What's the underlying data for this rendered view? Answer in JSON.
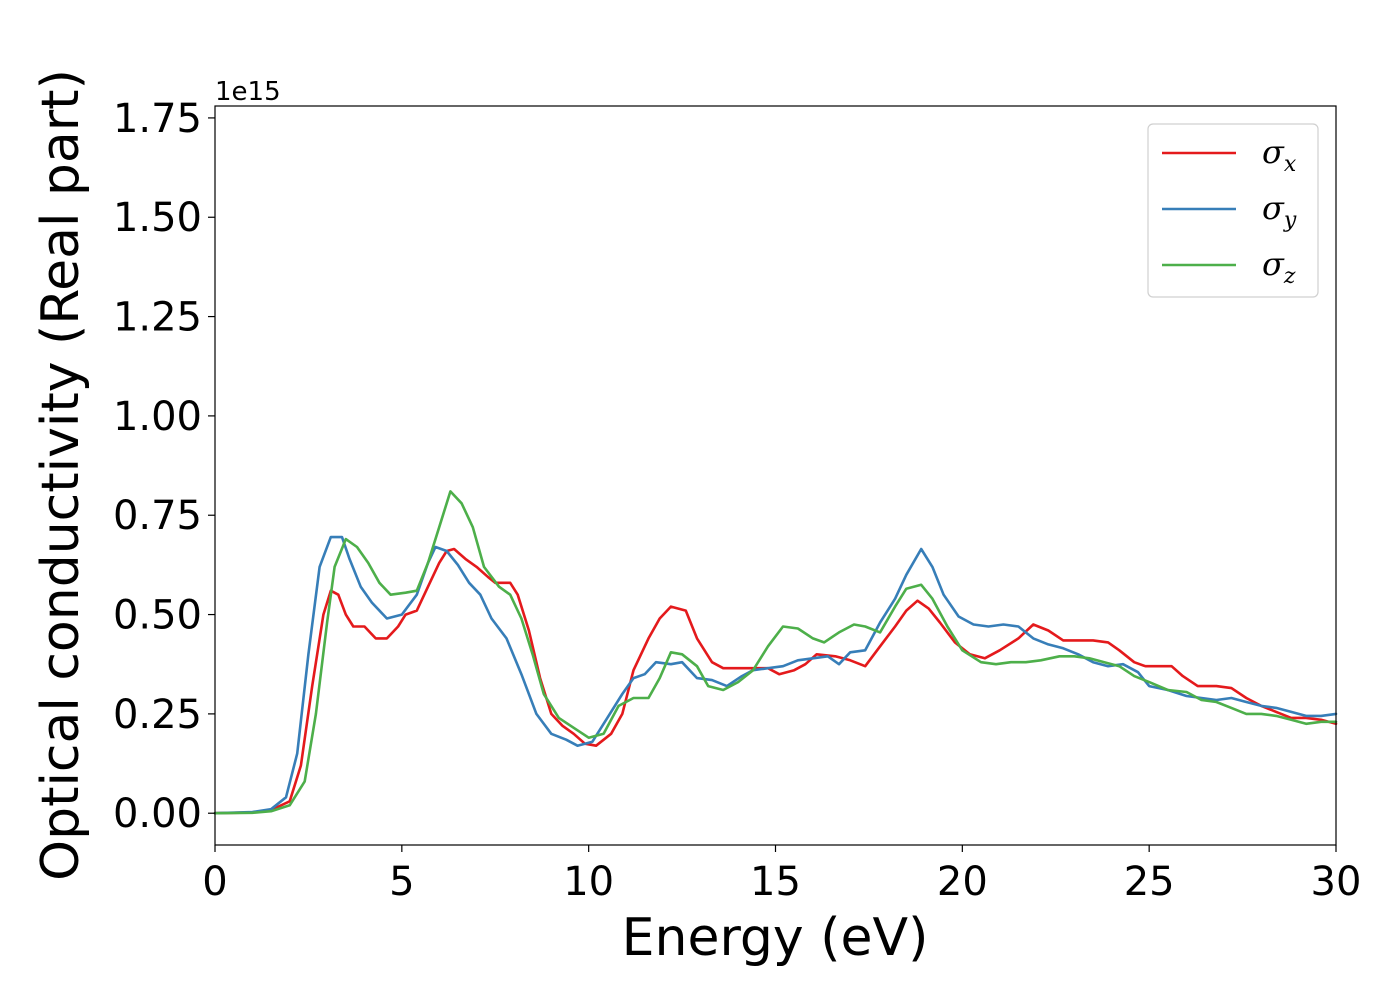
{
  "chart_data": {
    "type": "line",
    "title": "",
    "xlabel": "Energy (eV)",
    "ylabel": "Optical conductivity (Real part)",
    "y_offset_label": "1e15",
    "xlim": [
      0,
      30
    ],
    "ylim": [
      -0.08,
      1.78
    ],
    "x_ticks": [
      0,
      5,
      10,
      15,
      20,
      25,
      30
    ],
    "x_tick_labels": [
      "0",
      "5",
      "10",
      "15",
      "20",
      "25",
      "30"
    ],
    "y_ticks": [
      0,
      0.25,
      0.5,
      0.75,
      1.0,
      1.25,
      1.5,
      1.75
    ],
    "y_tick_labels": [
      "0.00",
      "0.25",
      "0.50",
      "0.75",
      "1.00",
      "1.25",
      "1.50",
      "1.75"
    ],
    "grid": false,
    "legend_position": "top-right",
    "series": [
      {
        "name": "σ",
        "sub": "x",
        "color": "#e41a1c",
        "points": [
          [
            0,
            0
          ],
          [
            1,
            0.002
          ],
          [
            1.5,
            0.008
          ],
          [
            2,
            0.03
          ],
          [
            2.3,
            0.12
          ],
          [
            2.6,
            0.32
          ],
          [
            2.9,
            0.5
          ],
          [
            3.1,
            0.56
          ],
          [
            3.3,
            0.55
          ],
          [
            3.5,
            0.5
          ],
          [
            3.7,
            0.47
          ],
          [
            4,
            0.47
          ],
          [
            4.3,
            0.44
          ],
          [
            4.6,
            0.44
          ],
          [
            4.9,
            0.47
          ],
          [
            5.1,
            0.5
          ],
          [
            5.4,
            0.51
          ],
          [
            5.7,
            0.57
          ],
          [
            6,
            0.63
          ],
          [
            6.2,
            0.66
          ],
          [
            6.4,
            0.665
          ],
          [
            6.7,
            0.64
          ],
          [
            7,
            0.62
          ],
          [
            7.3,
            0.595
          ],
          [
            7.5,
            0.58
          ],
          [
            7.9,
            0.58
          ],
          [
            8.1,
            0.55
          ],
          [
            8.4,
            0.46
          ],
          [
            8.7,
            0.34
          ],
          [
            9,
            0.25
          ],
          [
            9.3,
            0.22
          ],
          [
            9.6,
            0.2
          ],
          [
            9.9,
            0.175
          ],
          [
            10.2,
            0.17
          ],
          [
            10.6,
            0.2
          ],
          [
            10.9,
            0.25
          ],
          [
            11.2,
            0.36
          ],
          [
            11.6,
            0.44
          ],
          [
            11.9,
            0.49
          ],
          [
            12.2,
            0.52
          ],
          [
            12.6,
            0.51
          ],
          [
            12.9,
            0.44
          ],
          [
            13.3,
            0.38
          ],
          [
            13.6,
            0.365
          ],
          [
            14,
            0.365
          ],
          [
            14.4,
            0.365
          ],
          [
            14.8,
            0.365
          ],
          [
            15.1,
            0.35
          ],
          [
            15.5,
            0.36
          ],
          [
            15.8,
            0.375
          ],
          [
            16.1,
            0.4
          ],
          [
            16.6,
            0.395
          ],
          [
            17,
            0.385
          ],
          [
            17.4,
            0.37
          ],
          [
            17.8,
            0.42
          ],
          [
            18.2,
            0.47
          ],
          [
            18.5,
            0.51
          ],
          [
            18.8,
            0.535
          ],
          [
            19.1,
            0.515
          ],
          [
            19.4,
            0.48
          ],
          [
            19.8,
            0.43
          ],
          [
            20.2,
            0.4
          ],
          [
            20.6,
            0.39
          ],
          [
            21,
            0.41
          ],
          [
            21.5,
            0.44
          ],
          [
            21.9,
            0.475
          ],
          [
            22.3,
            0.46
          ],
          [
            22.7,
            0.435
          ],
          [
            23.1,
            0.435
          ],
          [
            23.5,
            0.435
          ],
          [
            23.9,
            0.43
          ],
          [
            24.2,
            0.41
          ],
          [
            24.6,
            0.38
          ],
          [
            24.9,
            0.37
          ],
          [
            25.3,
            0.37
          ],
          [
            25.6,
            0.37
          ],
          [
            25.9,
            0.345
          ],
          [
            26.3,
            0.32
          ],
          [
            26.8,
            0.32
          ],
          [
            27.2,
            0.315
          ],
          [
            27.6,
            0.29
          ],
          [
            28,
            0.27
          ],
          [
            28.4,
            0.255
          ],
          [
            28.8,
            0.24
          ],
          [
            29.2,
            0.24
          ],
          [
            29.6,
            0.235
          ],
          [
            30,
            0.225
          ]
        ]
      },
      {
        "name": "σ",
        "sub": "y",
        "color": "#377eb8",
        "points": [
          [
            0,
            0
          ],
          [
            1,
            0.003
          ],
          [
            1.5,
            0.01
          ],
          [
            1.9,
            0.04
          ],
          [
            2.2,
            0.15
          ],
          [
            2.5,
            0.4
          ],
          [
            2.8,
            0.62
          ],
          [
            3.1,
            0.695
          ],
          [
            3.4,
            0.695
          ],
          [
            3.6,
            0.64
          ],
          [
            3.9,
            0.57
          ],
          [
            4.2,
            0.53
          ],
          [
            4.6,
            0.49
          ],
          [
            5,
            0.5
          ],
          [
            5.4,
            0.55
          ],
          [
            5.7,
            0.63
          ],
          [
            5.9,
            0.67
          ],
          [
            6.2,
            0.66
          ],
          [
            6.5,
            0.625
          ],
          [
            6.8,
            0.58
          ],
          [
            7.1,
            0.55
          ],
          [
            7.4,
            0.49
          ],
          [
            7.8,
            0.44
          ],
          [
            8.2,
            0.35
          ],
          [
            8.6,
            0.25
          ],
          [
            9,
            0.2
          ],
          [
            9.4,
            0.185
          ],
          [
            9.7,
            0.17
          ],
          [
            10.1,
            0.18
          ],
          [
            10.5,
            0.24
          ],
          [
            10.9,
            0.3
          ],
          [
            11.2,
            0.34
          ],
          [
            11.5,
            0.35
          ],
          [
            11.8,
            0.38
          ],
          [
            12.2,
            0.375
          ],
          [
            12.5,
            0.38
          ],
          [
            12.9,
            0.34
          ],
          [
            13.3,
            0.335
          ],
          [
            13.7,
            0.32
          ],
          [
            14.1,
            0.345
          ],
          [
            14.4,
            0.36
          ],
          [
            14.8,
            0.365
          ],
          [
            15.2,
            0.37
          ],
          [
            15.6,
            0.385
          ],
          [
            16,
            0.39
          ],
          [
            16.4,
            0.395
          ],
          [
            16.7,
            0.375
          ],
          [
            17,
            0.405
          ],
          [
            17.4,
            0.41
          ],
          [
            17.8,
            0.48
          ],
          [
            18.2,
            0.54
          ],
          [
            18.5,
            0.6
          ],
          [
            18.9,
            0.665
          ],
          [
            19.2,
            0.62
          ],
          [
            19.5,
            0.55
          ],
          [
            19.9,
            0.495
          ],
          [
            20.3,
            0.475
          ],
          [
            20.7,
            0.47
          ],
          [
            21.1,
            0.475
          ],
          [
            21.5,
            0.47
          ],
          [
            21.9,
            0.44
          ],
          [
            22.3,
            0.425
          ],
          [
            22.7,
            0.415
          ],
          [
            23.1,
            0.4
          ],
          [
            23.5,
            0.38
          ],
          [
            23.9,
            0.37
          ],
          [
            24.3,
            0.375
          ],
          [
            24.7,
            0.355
          ],
          [
            25,
            0.32
          ],
          [
            25.5,
            0.31
          ],
          [
            26,
            0.295
          ],
          [
            26.4,
            0.29
          ],
          [
            26.8,
            0.285
          ],
          [
            27.2,
            0.29
          ],
          [
            27.6,
            0.28
          ],
          [
            28,
            0.27
          ],
          [
            28.4,
            0.265
          ],
          [
            28.8,
            0.255
          ],
          [
            29.2,
            0.245
          ],
          [
            29.6,
            0.245
          ],
          [
            30,
            0.25
          ]
        ]
      },
      {
        "name": "σ",
        "sub": "z",
        "color": "#4daf4a",
        "points": [
          [
            0,
            0
          ],
          [
            1,
            0.001
          ],
          [
            1.5,
            0.005
          ],
          [
            2,
            0.02
          ],
          [
            2.4,
            0.08
          ],
          [
            2.7,
            0.25
          ],
          [
            3,
            0.48
          ],
          [
            3.2,
            0.62
          ],
          [
            3.5,
            0.69
          ],
          [
            3.8,
            0.67
          ],
          [
            4.1,
            0.63
          ],
          [
            4.4,
            0.58
          ],
          [
            4.7,
            0.55
          ],
          [
            5.1,
            0.555
          ],
          [
            5.4,
            0.56
          ],
          [
            5.7,
            0.63
          ],
          [
            6,
            0.72
          ],
          [
            6.3,
            0.81
          ],
          [
            6.6,
            0.78
          ],
          [
            6.9,
            0.72
          ],
          [
            7.2,
            0.62
          ],
          [
            7.6,
            0.57
          ],
          [
            7.9,
            0.55
          ],
          [
            8.2,
            0.49
          ],
          [
            8.5,
            0.4
          ],
          [
            8.8,
            0.3
          ],
          [
            9.2,
            0.24
          ],
          [
            9.6,
            0.215
          ],
          [
            10,
            0.19
          ],
          [
            10.4,
            0.2
          ],
          [
            10.8,
            0.27
          ],
          [
            11.2,
            0.29
          ],
          [
            11.6,
            0.29
          ],
          [
            11.9,
            0.34
          ],
          [
            12.2,
            0.405
          ],
          [
            12.5,
            0.4
          ],
          [
            12.9,
            0.37
          ],
          [
            13.2,
            0.32
          ],
          [
            13.6,
            0.31
          ],
          [
            14,
            0.33
          ],
          [
            14.4,
            0.36
          ],
          [
            14.8,
            0.42
          ],
          [
            15.2,
            0.47
          ],
          [
            15.6,
            0.465
          ],
          [
            16,
            0.44
          ],
          [
            16.3,
            0.43
          ],
          [
            16.7,
            0.455
          ],
          [
            17.1,
            0.475
          ],
          [
            17.4,
            0.47
          ],
          [
            17.8,
            0.455
          ],
          [
            18.2,
            0.52
          ],
          [
            18.5,
            0.565
          ],
          [
            18.9,
            0.575
          ],
          [
            19.2,
            0.54
          ],
          [
            19.6,
            0.47
          ],
          [
            20,
            0.41
          ],
          [
            20.5,
            0.38
          ],
          [
            20.9,
            0.375
          ],
          [
            21.3,
            0.38
          ],
          [
            21.7,
            0.38
          ],
          [
            22.1,
            0.385
          ],
          [
            22.6,
            0.395
          ],
          [
            23,
            0.395
          ],
          [
            23.4,
            0.39
          ],
          [
            23.8,
            0.38
          ],
          [
            24.2,
            0.37
          ],
          [
            24.6,
            0.345
          ],
          [
            25,
            0.33
          ],
          [
            25.5,
            0.31
          ],
          [
            26,
            0.305
          ],
          [
            26.4,
            0.285
          ],
          [
            26.8,
            0.28
          ],
          [
            27.2,
            0.265
          ],
          [
            27.6,
            0.25
          ],
          [
            28,
            0.25
          ],
          [
            28.4,
            0.245
          ],
          [
            28.8,
            0.235
          ],
          [
            29.2,
            0.225
          ],
          [
            29.6,
            0.23
          ],
          [
            30,
            0.23
          ]
        ]
      }
    ]
  }
}
